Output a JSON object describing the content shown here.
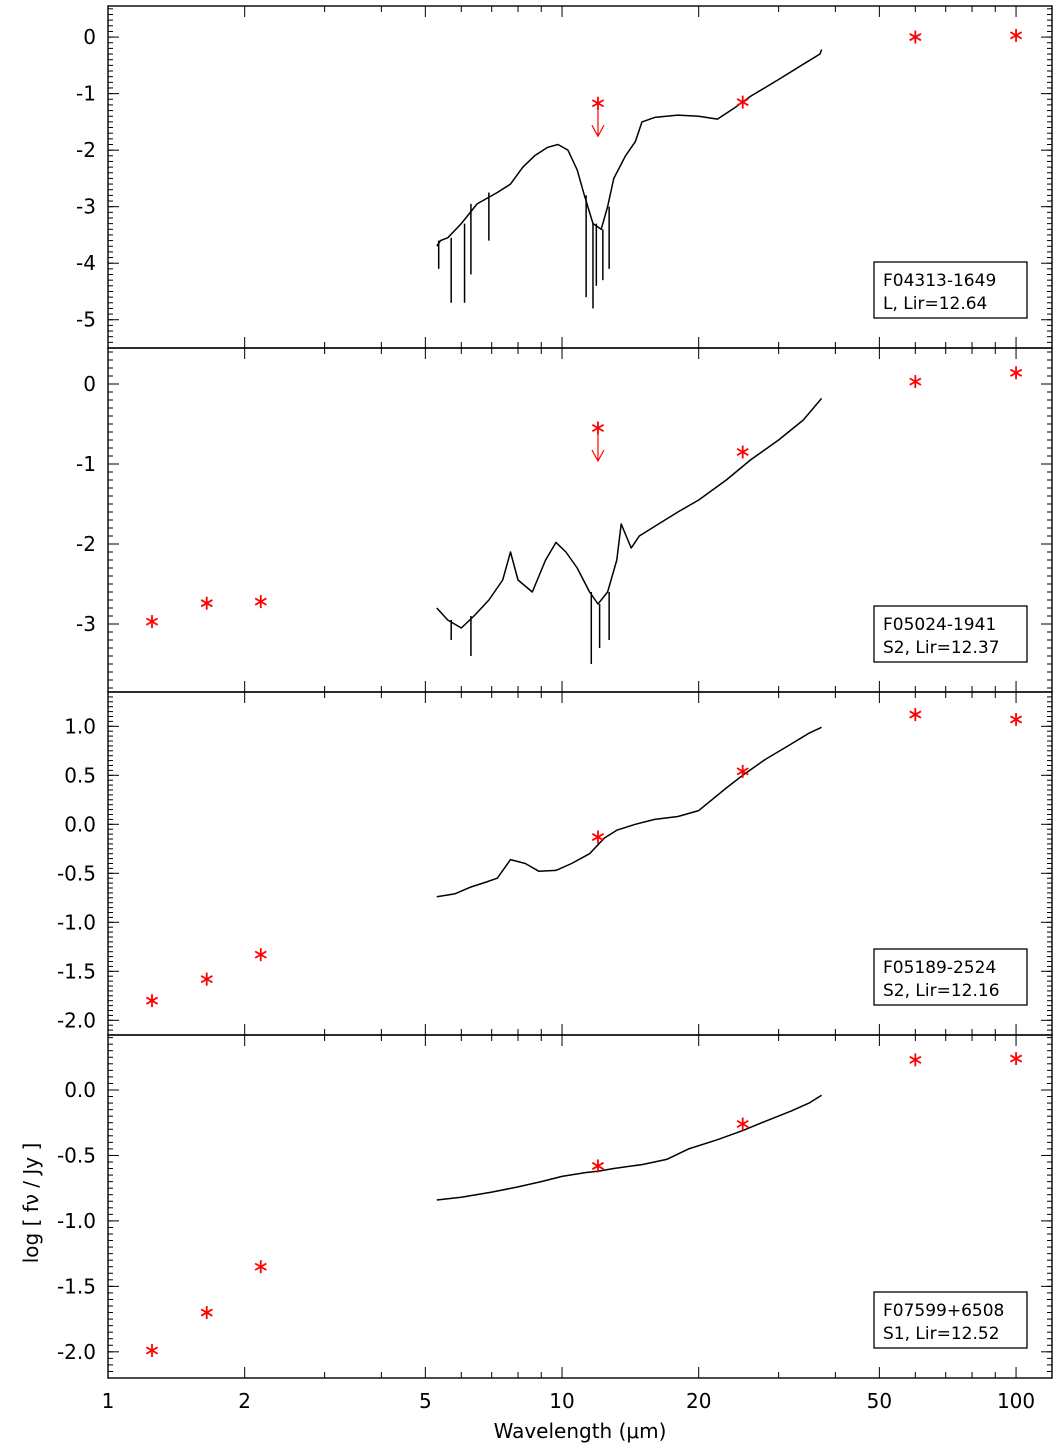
{
  "figure": {
    "xlabel": "Wavelength (μm)",
    "ylabel": "log [ fν / Jy ]",
    "x_scale": "log",
    "xlim": [
      1,
      120
    ],
    "x_ticks": [
      1,
      2,
      5,
      10,
      20,
      50,
      100
    ]
  },
  "chart_data": [
    {
      "type": "line",
      "label_line1": "F04313-1649",
      "label_line2": "L, Lir=12.64",
      "ylim": [
        -5.5,
        0.55
      ],
      "y_ticks": [
        0,
        -1,
        -2,
        -3,
        -4,
        -5
      ],
      "y_tick_labels": [
        "0",
        "-1",
        "-2",
        "-3",
        "-4",
        "-5"
      ],
      "y_minor_step": 0.1,
      "photometry": [
        {
          "x": 12,
          "y": -1.17,
          "upper_limit": true
        },
        {
          "x": 25,
          "y": -1.15
        },
        {
          "x": 60,
          "y": 0.0
        },
        {
          "x": 100,
          "y": 0.03
        }
      ],
      "spectrum": [
        {
          "x": 5.3,
          "y": -3.7
        },
        {
          "x": 5.4,
          "y": -3.6
        },
        {
          "x": 5.6,
          "y": -3.55
        },
        {
          "x": 6.0,
          "y": -3.3
        },
        {
          "x": 6.5,
          "y": -2.95
        },
        {
          "x": 7.2,
          "y": -2.75
        },
        {
          "x": 7.7,
          "y": -2.6
        },
        {
          "x": 8.2,
          "y": -2.3
        },
        {
          "x": 8.7,
          "y": -2.1
        },
        {
          "x": 9.3,
          "y": -1.95
        },
        {
          "x": 9.8,
          "y": -1.9
        },
        {
          "x": 10.3,
          "y": -2.0
        },
        {
          "x": 10.8,
          "y": -2.35
        },
        {
          "x": 11.2,
          "y": -2.8
        },
        {
          "x": 11.7,
          "y": -3.3
        },
        {
          "x": 12.2,
          "y": -3.4
        },
        {
          "x": 12.6,
          "y": -3.0
        },
        {
          "x": 13.0,
          "y": -2.5
        },
        {
          "x": 13.8,
          "y": -2.1
        },
        {
          "x": 14.5,
          "y": -1.85
        },
        {
          "x": 15.0,
          "y": -1.5
        },
        {
          "x": 16.0,
          "y": -1.42
        },
        {
          "x": 18.0,
          "y": -1.38
        },
        {
          "x": 20.0,
          "y": -1.4
        },
        {
          "x": 22.0,
          "y": -1.45
        },
        {
          "x": 24.0,
          "y": -1.25
        },
        {
          "x": 26.0,
          "y": -1.05
        },
        {
          "x": 30.0,
          "y": -0.75
        },
        {
          "x": 34.0,
          "y": -0.48
        },
        {
          "x": 37.0,
          "y": -0.3
        },
        {
          "x": 37.3,
          "y": -0.22
        }
      ],
      "absorption_dips": [
        {
          "x": 5.35,
          "y": -4.1
        },
        {
          "x": 5.7,
          "y": -4.7
        },
        {
          "x": 6.1,
          "y": -4.7
        },
        {
          "x": 6.3,
          "y": -4.2
        },
        {
          "x": 6.9,
          "y": -3.6
        },
        {
          "x": 11.3,
          "y": -4.6
        },
        {
          "x": 11.7,
          "y": -4.8
        },
        {
          "x": 11.9,
          "y": -4.4
        },
        {
          "x": 12.3,
          "y": -4.3
        },
        {
          "x": 12.7,
          "y": -4.1
        }
      ]
    },
    {
      "type": "line",
      "label_line1": "F05024-1941",
      "label_line2": "S2, Lir=12.37",
      "ylim": [
        -3.85,
        0.45
      ],
      "y_ticks": [
        0,
        -1,
        -2,
        -3
      ],
      "y_tick_labels": [
        "0",
        "-1",
        "-2",
        "-3"
      ],
      "y_minor_step": 0.1,
      "photometry": [
        {
          "x": 1.25,
          "y": -2.97
        },
        {
          "x": 1.65,
          "y": -2.74
        },
        {
          "x": 2.17,
          "y": -2.72
        },
        {
          "x": 12,
          "y": -0.55,
          "upper_limit": true
        },
        {
          "x": 25,
          "y": -0.85
        },
        {
          "x": 60,
          "y": 0.03
        },
        {
          "x": 100,
          "y": 0.14
        }
      ],
      "spectrum": [
        {
          "x": 5.3,
          "y": -2.8
        },
        {
          "x": 5.6,
          "y": -2.95
        },
        {
          "x": 6.0,
          "y": -3.05
        },
        {
          "x": 6.4,
          "y": -2.9
        },
        {
          "x": 6.9,
          "y": -2.7
        },
        {
          "x": 7.4,
          "y": -2.45
        },
        {
          "x": 7.7,
          "y": -2.1
        },
        {
          "x": 8.0,
          "y": -2.45
        },
        {
          "x": 8.6,
          "y": -2.6
        },
        {
          "x": 9.2,
          "y": -2.2
        },
        {
          "x": 9.7,
          "y": -1.98
        },
        {
          "x": 10.2,
          "y": -2.1
        },
        {
          "x": 10.8,
          "y": -2.3
        },
        {
          "x": 11.5,
          "y": -2.6
        },
        {
          "x": 12.0,
          "y": -2.75
        },
        {
          "x": 12.6,
          "y": -2.6
        },
        {
          "x": 13.2,
          "y": -2.2
        },
        {
          "x": 13.5,
          "y": -1.75
        },
        {
          "x": 14.2,
          "y": -2.05
        },
        {
          "x": 14.8,
          "y": -1.9
        },
        {
          "x": 16.0,
          "y": -1.78
        },
        {
          "x": 18.0,
          "y": -1.6
        },
        {
          "x": 20.0,
          "y": -1.45
        },
        {
          "x": 23.0,
          "y": -1.2
        },
        {
          "x": 26.0,
          "y": -0.95
        },
        {
          "x": 30.0,
          "y": -0.7
        },
        {
          "x": 34.0,
          "y": -0.45
        },
        {
          "x": 37.3,
          "y": -0.18
        }
      ],
      "absorption_dips": [
        {
          "x": 5.7,
          "y": -3.2
        },
        {
          "x": 6.3,
          "y": -3.4
        },
        {
          "x": 11.6,
          "y": -3.5
        },
        {
          "x": 12.1,
          "y": -3.3
        },
        {
          "x": 12.7,
          "y": -3.2
        }
      ]
    },
    {
      "type": "line",
      "label_line1": "F05189-2524",
      "label_line2": "S2, Lir=12.16",
      "ylim": [
        -2.15,
        1.35
      ],
      "y_ticks": [
        1.0,
        0.5,
        0.0,
        -0.5,
        -1.0,
        -1.5,
        -2.0
      ],
      "y_tick_labels": [
        "1.0",
        "0.5",
        "0.0",
        "-0.5",
        "-1.0",
        "-1.5",
        "-2.0"
      ],
      "y_minor_step": 0.05,
      "photometry": [
        {
          "x": 1.25,
          "y": -1.8
        },
        {
          "x": 1.65,
          "y": -1.58
        },
        {
          "x": 2.17,
          "y": -1.33
        },
        {
          "x": 12,
          "y": -0.13
        },
        {
          "x": 25,
          "y": 0.54
        },
        {
          "x": 60,
          "y": 1.12
        },
        {
          "x": 100,
          "y": 1.07
        }
      ],
      "spectrum": [
        {
          "x": 5.3,
          "y": -0.74
        },
        {
          "x": 5.8,
          "y": -0.71
        },
        {
          "x": 6.3,
          "y": -0.64
        },
        {
          "x": 6.8,
          "y": -0.59
        },
        {
          "x": 7.2,
          "y": -0.55
        },
        {
          "x": 7.7,
          "y": -0.36
        },
        {
          "x": 8.3,
          "y": -0.4
        },
        {
          "x": 8.9,
          "y": -0.48
        },
        {
          "x": 9.7,
          "y": -0.47
        },
        {
          "x": 10.5,
          "y": -0.4
        },
        {
          "x": 11.5,
          "y": -0.3
        },
        {
          "x": 12.4,
          "y": -0.14
        },
        {
          "x": 13.2,
          "y": -0.06
        },
        {
          "x": 14.5,
          "y": 0.0
        },
        {
          "x": 16.0,
          "y": 0.05
        },
        {
          "x": 18.0,
          "y": 0.08
        },
        {
          "x": 20.0,
          "y": 0.14
        },
        {
          "x": 23.0,
          "y": 0.37
        },
        {
          "x": 25.0,
          "y": 0.5
        },
        {
          "x": 28.0,
          "y": 0.66
        },
        {
          "x": 32.0,
          "y": 0.82
        },
        {
          "x": 35.0,
          "y": 0.93
        },
        {
          "x": 37.3,
          "y": 0.99
        }
      ],
      "absorption_dips": []
    },
    {
      "type": "line",
      "label_line1": "F07599+6508",
      "label_line2": "S1, Lir=12.52",
      "ylim": [
        -2.2,
        0.42
      ],
      "y_ticks": [
        0.0,
        -0.5,
        -1.0,
        -1.5,
        -2.0
      ],
      "y_tick_labels": [
        "0.0",
        "-0.5",
        "-1.0",
        "-1.5",
        "-2.0"
      ],
      "y_minor_step": 0.05,
      "photometry": [
        {
          "x": 1.25,
          "y": -1.99
        },
        {
          "x": 1.65,
          "y": -1.7
        },
        {
          "x": 2.17,
          "y": -1.35
        },
        {
          "x": 12,
          "y": -0.58
        },
        {
          "x": 25,
          "y": -0.26
        },
        {
          "x": 60,
          "y": 0.23
        },
        {
          "x": 100,
          "y": 0.24
        }
      ],
      "spectrum": [
        {
          "x": 5.3,
          "y": -0.84
        },
        {
          "x": 6.0,
          "y": -0.82
        },
        {
          "x": 7.0,
          "y": -0.78
        },
        {
          "x": 8.0,
          "y": -0.74
        },
        {
          "x": 9.0,
          "y": -0.7
        },
        {
          "x": 10.0,
          "y": -0.66
        },
        {
          "x": 11.3,
          "y": -0.63
        },
        {
          "x": 12.0,
          "y": -0.62
        },
        {
          "x": 13.0,
          "y": -0.6
        },
        {
          "x": 15.0,
          "y": -0.57
        },
        {
          "x": 17.0,
          "y": -0.53
        },
        {
          "x": 19.0,
          "y": -0.45
        },
        {
          "x": 22.0,
          "y": -0.38
        },
        {
          "x": 25.0,
          "y": -0.31
        },
        {
          "x": 28.0,
          "y": -0.24
        },
        {
          "x": 32.0,
          "y": -0.16
        },
        {
          "x": 35.0,
          "y": -0.1
        },
        {
          "x": 37.3,
          "y": -0.04
        }
      ],
      "absorption_dips": []
    }
  ]
}
